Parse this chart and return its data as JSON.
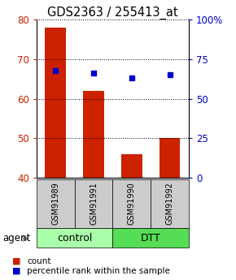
{
  "title": "GDS2363 / 255413_at",
  "samples": [
    "GSM91989",
    "GSM91991",
    "GSM91990",
    "GSM91992"
  ],
  "bar_values": [
    78,
    62,
    46,
    50
  ],
  "percentile_values": [
    68,
    66,
    63,
    65
  ],
  "bar_color": "#cc2200",
  "dot_color": "#0000cc",
  "ylim_left": [
    40,
    80
  ],
  "ylim_right": [
    0,
    100
  ],
  "yticks_left": [
    40,
    50,
    60,
    70,
    80
  ],
  "yticks_right": [
    0,
    25,
    50,
    75,
    100
  ],
  "ytick_labels_right": [
    "0",
    "25",
    "50",
    "75",
    "100%"
  ],
  "groups": [
    {
      "label": "control",
      "samples": [
        0,
        1
      ],
      "color": "#aaffaa"
    },
    {
      "label": "DTT",
      "samples": [
        2,
        3
      ],
      "color": "#55dd55"
    }
  ],
  "agent_label": "agent",
  "legend_count_label": "count",
  "legend_pct_label": "percentile rank within the sample",
  "bar_color_legend": "#cc2200",
  "dot_color_legend": "#0000cc",
  "bar_width": 0.55,
  "sample_box_color": "#cccccc",
  "title_fontsize": 10.5,
  "tick_fontsize": 8.5,
  "sample_fontsize": 7,
  "group_fontsize": 9,
  "legend_fontsize": 7.5
}
